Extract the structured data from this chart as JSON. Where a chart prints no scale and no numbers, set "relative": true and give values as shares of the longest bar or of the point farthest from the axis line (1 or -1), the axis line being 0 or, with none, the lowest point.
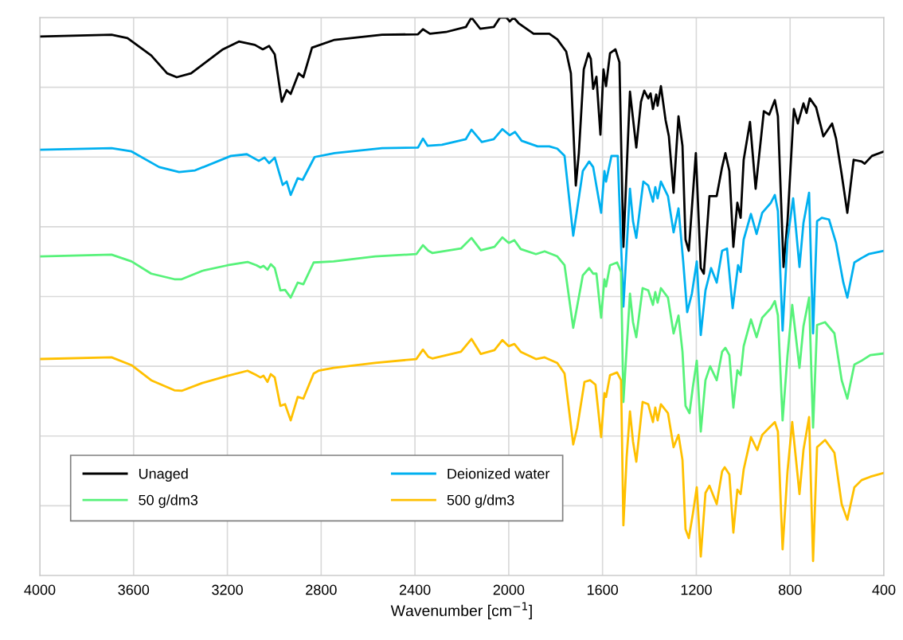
{
  "chart_data": {
    "type": "line",
    "relative": true,
    "xlabel": "Wavenumber [cm$^{−1}$]",
    "xlim": [
      4000,
      400
    ],
    "xticks": [
      4000,
      3600,
      3200,
      2800,
      2400,
      2000,
      1600,
      1200,
      800,
      400
    ],
    "grid": true,
    "legend": "bottom left",
    "tick_labels": "x",
    "line_style": "solid",
    "series": [
      {
        "name": "Unaged",
        "color": "#000000",
        "x": [
          4000,
          3694,
          3626,
          3525,
          3457,
          3416,
          3355,
          3219,
          3151,
          3083,
          3049,
          3022,
          2998,
          2968,
          2947,
          2930,
          2896,
          2876,
          2839,
          2743,
          2540,
          2387,
          2366,
          2336,
          2268,
          2183,
          2159,
          2122,
          2064,
          2037,
          2010,
          1996,
          1979,
          1956,
          1894,
          1827,
          1793,
          1755,
          1735,
          1714,
          1701,
          1680,
          1660,
          1650,
          1640,
          1626,
          1609,
          1596,
          1585,
          1568,
          1545,
          1528,
          1511,
          1483,
          1456,
          1436,
          1422,
          1405,
          1395,
          1385,
          1371,
          1365,
          1351,
          1331,
          1317,
          1297,
          1276,
          1259,
          1246,
          1232,
          1202,
          1181,
          1168,
          1144,
          1113,
          1090,
          1076,
          1059,
          1042,
          1025,
          1011,
          998,
          971,
          947,
          912,
          889,
          865,
          852,
          828,
          811,
          784,
          767,
          743,
          730,
          716,
          689,
          658,
          621,
          604,
          580,
          556,
          529,
          495,
          482,
          451,
          400
        ],
        "values": [
          0.966,
          0.969,
          0.963,
          0.932,
          0.9,
          0.893,
          0.9,
          0.943,
          0.957,
          0.951,
          0.943,
          0.949,
          0.934,
          0.849,
          0.87,
          0.863,
          0.9,
          0.893,
          0.946,
          0.96,
          0.969,
          0.97,
          0.979,
          0.971,
          0.974,
          0.983,
          1.0,
          0.98,
          0.983,
          1.0,
          1.0,
          0.993,
          1.0,
          0.989,
          0.971,
          0.971,
          0.961,
          0.939,
          0.9,
          0.699,
          0.757,
          0.907,
          0.936,
          0.926,
          0.872,
          0.894,
          0.79,
          0.907,
          0.877,
          0.936,
          0.943,
          0.92,
          0.589,
          0.867,
          0.767,
          0.849,
          0.869,
          0.855,
          0.864,
          0.836,
          0.862,
          0.842,
          0.877,
          0.816,
          0.787,
          0.686,
          0.823,
          0.77,
          0.602,
          0.582,
          0.757,
          0.551,
          0.541,
          0.68,
          0.68,
          0.732,
          0.757,
          0.725,
          0.589,
          0.668,
          0.641,
          0.745,
          0.813,
          0.693,
          0.832,
          0.826,
          0.852,
          0.823,
          0.553,
          0.635,
          0.836,
          0.81,
          0.846,
          0.829,
          0.855,
          0.839,
          0.787,
          0.81,
          0.783,
          0.719,
          0.65,
          0.745,
          0.742,
          0.738,
          0.752,
          0.76
        ]
      },
      {
        "name": "Deionized water",
        "color": "#00b0f0",
        "x": [
          4000,
          3694,
          3609,
          3491,
          3406,
          3338,
          3185,
          3117,
          3066,
          3042,
          3022,
          2998,
          2964,
          2947,
          2930,
          2900,
          2879,
          2828,
          2743,
          2540,
          2387,
          2366,
          2346,
          2285,
          2183,
          2159,
          2115,
          2064,
          2027,
          1996,
          1973,
          1945,
          1877,
          1827,
          1793,
          1762,
          1725,
          1684,
          1657,
          1640,
          1606,
          1592,
          1585,
          1562,
          1535,
          1511,
          1483,
          1470,
          1456,
          1426,
          1405,
          1385,
          1375,
          1365,
          1351,
          1321,
          1297,
          1276,
          1256,
          1239,
          1219,
          1198,
          1181,
          1161,
          1137,
          1113,
          1090,
          1069,
          1045,
          1022,
          1011,
          998,
          967,
          943,
          919,
          882,
          865,
          852,
          832,
          811,
          787,
          760,
          743,
          719,
          702,
          685,
          665,
          634,
          604,
          573,
          556,
          526,
          495,
          465,
          400
        ],
        "values": [
          0.763,
          0.766,
          0.76,
          0.732,
          0.723,
          0.726,
          0.752,
          0.755,
          0.743,
          0.749,
          0.739,
          0.749,
          0.7,
          0.706,
          0.682,
          0.712,
          0.709,
          0.75,
          0.757,
          0.766,
          0.767,
          0.783,
          0.77,
          0.772,
          0.782,
          0.799,
          0.777,
          0.782,
          0.8,
          0.789,
          0.795,
          0.779,
          0.769,
          0.769,
          0.765,
          0.752,
          0.609,
          0.725,
          0.742,
          0.732,
          0.65,
          0.725,
          0.706,
          0.752,
          0.752,
          0.482,
          0.693,
          0.635,
          0.605,
          0.706,
          0.699,
          0.67,
          0.696,
          0.676,
          0.706,
          0.68,
          0.615,
          0.658,
          0.563,
          0.472,
          0.505,
          0.563,
          0.431,
          0.511,
          0.551,
          0.525,
          0.582,
          0.586,
          0.479,
          0.556,
          0.544,
          0.602,
          0.648,
          0.612,
          0.65,
          0.668,
          0.682,
          0.653,
          0.439,
          0.602,
          0.676,
          0.553,
          0.632,
          0.686,
          0.434,
          0.635,
          0.641,
          0.638,
          0.596,
          0.525,
          0.498,
          0.561,
          0.569,
          0.576,
          0.582
        ]
      },
      {
        "name": "50 g/dm3",
        "color": "#57f27a",
        "x": [
          3997,
          3694,
          3609,
          3525,
          3426,
          3395,
          3307,
          3199,
          3114,
          3076,
          3059,
          3046,
          3029,
          3015,
          2998,
          2974,
          2954,
          2930,
          2900,
          2876,
          2832,
          2747,
          2570,
          2394,
          2366,
          2343,
          2326,
          2204,
          2159,
          2119,
          2061,
          2027,
          2000,
          1976,
          1949,
          1884,
          1847,
          1793,
          1762,
          1725,
          1684,
          1657,
          1640,
          1626,
          1606,
          1592,
          1585,
          1568,
          1538,
          1521,
          1511,
          1483,
          1470,
          1456,
          1429,
          1405,
          1385,
          1375,
          1365,
          1351,
          1321,
          1297,
          1276,
          1259,
          1246,
          1229,
          1215,
          1198,
          1181,
          1161,
          1141,
          1113,
          1090,
          1076,
          1059,
          1042,
          1025,
          1011,
          998,
          967,
          943,
          919,
          882,
          865,
          852,
          832,
          811,
          791,
          760,
          743,
          719,
          702,
          685,
          651,
          611,
          580,
          556,
          526,
          495,
          458,
          400
        ],
        "values": [
          0.572,
          0.575,
          0.563,
          0.541,
          0.531,
          0.531,
          0.546,
          0.556,
          0.562,
          0.556,
          0.552,
          0.555,
          0.548,
          0.558,
          0.551,
          0.511,
          0.512,
          0.498,
          0.525,
          0.522,
          0.561,
          0.563,
          0.572,
          0.576,
          0.592,
          0.582,
          0.578,
          0.586,
          0.605,
          0.583,
          0.589,
          0.606,
          0.596,
          0.601,
          0.585,
          0.576,
          0.581,
          0.572,
          0.556,
          0.444,
          0.538,
          0.551,
          0.541,
          0.541,
          0.462,
          0.531,
          0.518,
          0.556,
          0.561,
          0.544,
          0.311,
          0.505,
          0.454,
          0.427,
          0.515,
          0.511,
          0.485,
          0.508,
          0.489,
          0.515,
          0.498,
          0.434,
          0.466,
          0.401,
          0.304,
          0.291,
          0.337,
          0.385,
          0.258,
          0.35,
          0.375,
          0.35,
          0.401,
          0.408,
          0.395,
          0.301,
          0.368,
          0.359,
          0.411,
          0.459,
          0.427,
          0.462,
          0.479,
          0.492,
          0.466,
          0.278,
          0.395,
          0.485,
          0.372,
          0.447,
          0.498,
          0.265,
          0.449,
          0.454,
          0.434,
          0.35,
          0.317,
          0.378,
          0.385,
          0.395,
          0.398
        ]
      },
      {
        "name": "500 g/dm3",
        "color": "#ffc000",
        "x": [
          3997,
          3694,
          3609,
          3525,
          3426,
          3395,
          3307,
          3199,
          3114,
          3076,
          3059,
          3046,
          3029,
          3015,
          2998,
          2974,
          2954,
          2930,
          2900,
          2876,
          2832,
          2811,
          2747,
          2570,
          2394,
          2366,
          2343,
          2326,
          2204,
          2159,
          2119,
          2061,
          2027,
          2000,
          1976,
          1949,
          1884,
          1847,
          1793,
          1762,
          1725,
          1708,
          1677,
          1653,
          1630,
          1606,
          1592,
          1585,
          1568,
          1538,
          1521,
          1511,
          1497,
          1483,
          1470,
          1456,
          1429,
          1405,
          1385,
          1375,
          1365,
          1351,
          1321,
          1297,
          1276,
          1259,
          1246,
          1232,
          1215,
          1198,
          1181,
          1161,
          1144,
          1113,
          1090,
          1079,
          1059,
          1042,
          1025,
          1011,
          998,
          967,
          940,
          919,
          889,
          865,
          852,
          832,
          811,
          791,
          760,
          743,
          719,
          702,
          685,
          651,
          611,
          580,
          556,
          526,
          495,
          458,
          400
        ],
        "values": [
          0.388,
          0.391,
          0.377,
          0.35,
          0.332,
          0.331,
          0.345,
          0.358,
          0.367,
          0.359,
          0.355,
          0.358,
          0.347,
          0.361,
          0.355,
          0.304,
          0.307,
          0.278,
          0.32,
          0.317,
          0.362,
          0.367,
          0.372,
          0.381,
          0.388,
          0.405,
          0.392,
          0.389,
          0.401,
          0.424,
          0.397,
          0.404,
          0.422,
          0.411,
          0.415,
          0.401,
          0.388,
          0.391,
          0.381,
          0.362,
          0.235,
          0.265,
          0.347,
          0.35,
          0.342,
          0.248,
          0.327,
          0.32,
          0.359,
          0.364,
          0.35,
          0.09,
          0.213,
          0.294,
          0.24,
          0.204,
          0.311,
          0.307,
          0.275,
          0.301,
          0.278,
          0.307,
          0.291,
          0.23,
          0.252,
          0.207,
          0.083,
          0.067,
          0.11,
          0.158,
          0.034,
          0.148,
          0.161,
          0.128,
          0.187,
          0.194,
          0.181,
          0.077,
          0.154,
          0.146,
          0.19,
          0.248,
          0.225,
          0.252,
          0.265,
          0.275,
          0.258,
          0.047,
          0.187,
          0.275,
          0.146,
          0.225,
          0.284,
          0.026,
          0.23,
          0.243,
          0.22,
          0.128,
          0.1,
          0.158,
          0.171,
          0.177,
          0.184
        ]
      }
    ]
  }
}
